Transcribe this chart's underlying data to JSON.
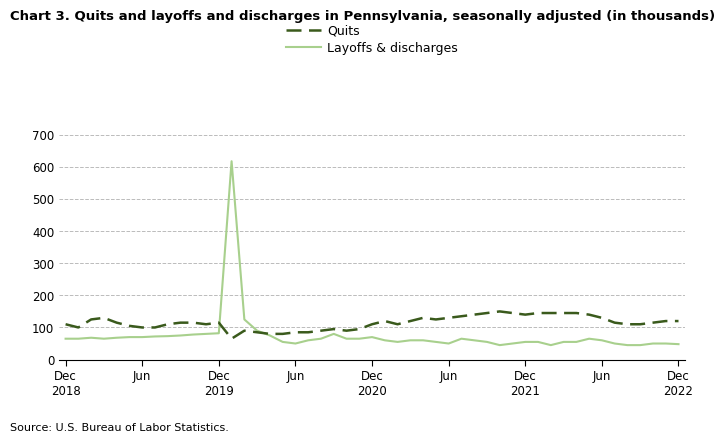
{
  "title": "Chart 3. Quits and layoffs and discharges in Pennsylvania, seasonally adjusted (in thousands)",
  "source": "Source: U.S. Bureau of Labor Statistics.",
  "quits_label": "Quits",
  "layoffs_label": "Layoffs & discharges",
  "quits_color": "#3a5a1c",
  "layoffs_color": "#a8d08d",
  "ylim": [
    0,
    700
  ],
  "yticks": [
    0,
    100,
    200,
    300,
    400,
    500,
    600,
    700
  ],
  "x_tick_labels": [
    "Dec\n2018",
    "Jun",
    "Dec\n2019",
    "Jun",
    "Dec\n2020",
    "Jun",
    "Dec\n2021",
    "Jun",
    "Dec\n2022"
  ],
  "x_tick_positions": [
    0,
    6,
    12,
    18,
    24,
    30,
    36,
    42,
    48
  ],
  "quits": [
    110,
    100,
    125,
    130,
    115,
    105,
    100,
    100,
    110,
    115,
    115,
    110,
    115,
    65,
    90,
    85,
    80,
    80,
    85,
    85,
    90,
    95,
    90,
    95,
    110,
    120,
    110,
    120,
    130,
    125,
    130,
    135,
    140,
    145,
    150,
    145,
    140,
    145,
    145,
    145,
    145,
    140,
    130,
    115,
    110,
    110,
    115,
    120,
    120
  ],
  "layoffs": [
    65,
    65,
    68,
    65,
    68,
    70,
    70,
    72,
    73,
    75,
    78,
    80,
    82,
    618,
    125,
    90,
    75,
    55,
    50,
    60,
    65,
    80,
    65,
    65,
    70,
    60,
    55,
    60,
    60,
    55,
    50,
    65,
    60,
    55,
    45,
    50,
    55,
    55,
    45,
    55,
    55,
    65,
    60,
    50,
    45,
    45,
    50,
    50,
    48
  ],
  "title_fontsize": 9.5,
  "axis_fontsize": 8.5,
  "legend_fontsize": 9,
  "source_fontsize": 8
}
